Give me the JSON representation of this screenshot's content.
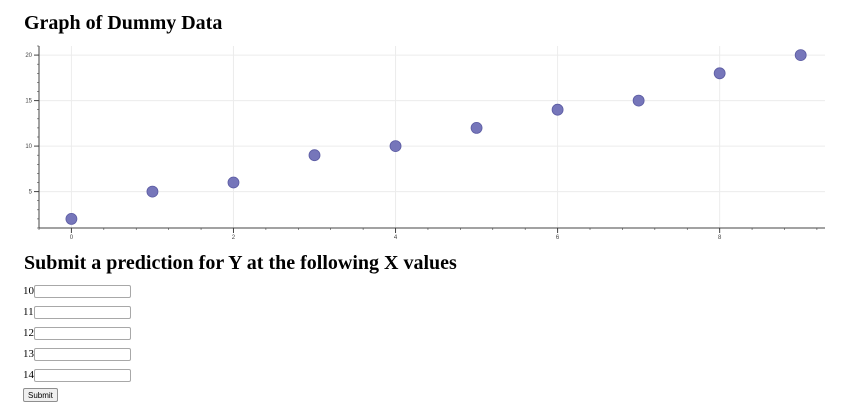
{
  "page": {
    "title": "Graph of Dummy Data",
    "form_title": "Submit a prediction for Y at the following X values",
    "submit_label": "Submit"
  },
  "form": {
    "inputs": [
      {
        "label": "10",
        "value": ""
      },
      {
        "label": "11",
        "value": ""
      },
      {
        "label": "12",
        "value": ""
      },
      {
        "label": "13",
        "value": ""
      },
      {
        "label": "14",
        "value": ""
      }
    ]
  },
  "chart_data": {
    "type": "scatter",
    "x": [
      0,
      1,
      2,
      3,
      4,
      5,
      6,
      7,
      8,
      9
    ],
    "y": [
      2,
      5,
      6,
      9,
      10,
      12,
      14,
      15,
      18,
      20
    ],
    "xlim": [
      -0.4,
      9.3
    ],
    "ylim": [
      1,
      21
    ],
    "x_ticks": [
      0,
      2,
      4,
      6,
      8
    ],
    "y_ticks": [
      5,
      10,
      15,
      20
    ],
    "grid": true,
    "marker_color": "#6f6fb6"
  }
}
